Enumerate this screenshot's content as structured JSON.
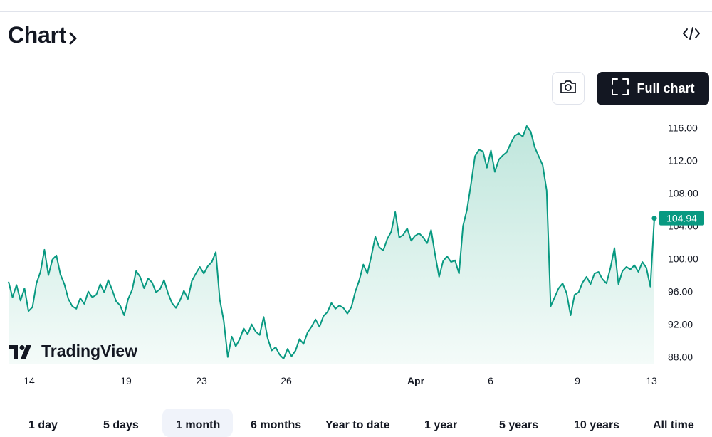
{
  "header": {
    "title": "Chart",
    "embed_icon": "code-icon"
  },
  "toolbar": {
    "screenshot_icon": "camera-icon",
    "full_chart_label": "Full chart",
    "full_chart_icon": "fullscreen-icon"
  },
  "logo": {
    "text": "TradingView"
  },
  "ranges": [
    "1 day",
    "5 days",
    "1 month",
    "6 months",
    "Year to date",
    "1 year",
    "5 years",
    "10 years",
    "All time"
  ],
  "active_range": "1 month",
  "colors": {
    "line": "#089981",
    "badge": "#089981",
    "fill_top": "#bfe6dc",
    "fill_bottom": "#f4fbf9"
  },
  "chart_data": {
    "type": "area",
    "x_tick_labels": [
      "14",
      "19",
      "23",
      "26",
      "Apr",
      "6",
      "9",
      "13"
    ],
    "y_tick_labels": [
      "116.00",
      "112.00",
      "108.00",
      "104.00",
      "100.00",
      "96.00",
      "92.00",
      "88.00"
    ],
    "ylim": [
      86.5,
      117.5
    ],
    "last_price_label": "104.94",
    "series": [
      {
        "values": [
          97.2,
          95.3,
          96.8,
          94.9,
          96.4,
          93.6,
          94.1,
          97.0,
          98.4,
          101.1,
          98.0,
          99.9,
          100.4,
          98.1,
          96.9,
          95.1,
          94.2,
          93.9,
          95.2,
          94.5,
          96.0,
          95.3,
          95.6,
          96.9,
          95.9,
          97.4,
          96.2,
          94.8,
          94.3,
          93.1,
          95.1,
          96.2,
          98.5,
          97.8,
          96.4,
          97.6,
          97.1,
          95.9,
          96.3,
          97.4,
          95.8,
          94.6,
          94.0,
          94.9,
          96.1,
          95.1,
          97.3,
          98.2,
          99.0,
          98.2,
          99.1,
          99.6,
          100.8,
          95.0,
          92.4,
          88.0,
          90.5,
          89.3,
          90.2,
          91.5,
          90.8,
          92.0,
          91.1,
          90.7,
          92.9,
          90.3,
          88.8,
          89.2,
          88.3,
          87.8,
          89.0,
          88.1,
          88.8,
          90.2,
          89.6,
          91.0,
          91.7,
          92.6,
          91.7,
          93.0,
          93.5,
          94.6,
          93.9,
          94.3,
          94.0,
          93.3,
          94.1,
          96.0,
          97.4,
          99.3,
          98.2,
          100.3,
          102.7,
          101.4,
          101.0,
          102.4,
          103.3,
          105.7,
          102.6,
          102.9,
          103.7,
          102.2,
          102.8,
          103.1,
          102.6,
          101.9,
          103.5,
          100.5,
          97.8,
          99.7,
          100.3,
          99.6,
          99.8,
          98.2,
          104.0,
          106.0,
          109.1,
          112.5,
          113.3,
          113.1,
          111.1,
          113.2,
          110.6,
          112.1,
          112.6,
          113.0,
          114.1,
          115.0,
          115.3,
          114.9,
          116.2,
          115.5,
          113.6,
          112.5,
          111.4,
          108.3,
          94.2,
          95.3,
          96.4,
          97.0,
          95.8,
          93.1,
          95.6,
          95.9,
          97.1,
          97.8,
          96.9,
          98.2,
          98.4,
          97.5,
          97.0,
          98.9,
          101.3,
          96.9,
          98.5,
          99.0,
          98.7,
          99.2,
          98.4,
          99.6,
          98.9,
          96.6,
          104.94
        ]
      }
    ]
  }
}
